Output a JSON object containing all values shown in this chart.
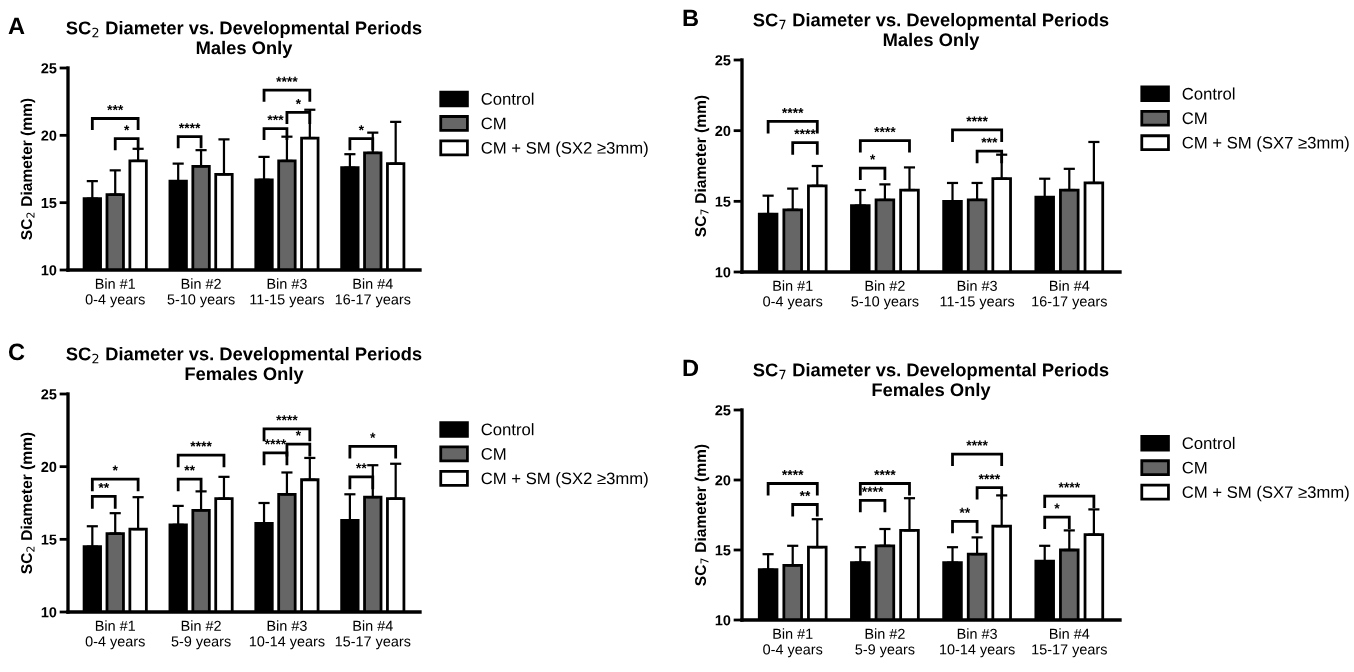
{
  "chart_data": [
    {
      "type": "bar",
      "title": "SC$_{2}$ Diameter vs. Developmental Periods",
      "subtitle": "Males Only",
      "ylabel": "SC$_{2}$ Diameter (mm)",
      "categories": [
        "Bin #1\n0-4 years",
        "Bin #2\n5-10 years",
        "Bin #3\n11-15 years",
        "Bin #4\n16-17 years"
      ],
      "ylim": [
        10,
        25
      ],
      "yticks": [
        10,
        15,
        20,
        25
      ],
      "legend": "right",
      "series": [
        {
          "name": "Control",
          "color": "#000000",
          "values": [
            15.3,
            16.6,
            16.7,
            17.6
          ],
          "errors": [
            [
              15.3,
              16.6
            ],
            [
              16.6,
              17.9
            ],
            [
              16.7,
              18.4
            ],
            [
              17.6,
              18.6
            ]
          ]
        },
        {
          "name": "CM",
          "color": "#666666",
          "values": [
            15.6,
            17.7,
            18.1,
            18.7
          ],
          "errors": [
            [
              15.6,
              17.4
            ],
            [
              17.7,
              18.9
            ],
            [
              18.1,
              19.9
            ],
            [
              18.7,
              20.2
            ]
          ]
        },
        {
          "name": "CM + SM (SX2 ≥3mm)",
          "color": "#ffffff",
          "values": [
            18.1,
            17.1,
            19.8,
            17.9
          ],
          "errors": [
            [
              18.1,
              19.0
            ],
            [
              17.1,
              19.7
            ],
            [
              19.8,
              21.9
            ],
            [
              17.9,
              21.0
            ]
          ]
        }
      ],
      "annotations": [
        "A",
        "***",
        "*",
        "****",
        "****",
        "***",
        "*",
        "*"
      ]
    },
    {
      "type": "bar",
      "title": "SC$_{7}$ Diameter vs. Developmental Periods",
      "subtitle": "Males Only",
      "ylabel": "SC$_{7}$ Diameter (mm)",
      "categories": [
        "Bin #1\n0-4 years",
        "Bin #2\n5-10 years",
        "Bin #3\n11-15 years",
        "Bin #4\n16-17 years"
      ],
      "ylim": [
        10,
        25
      ],
      "yticks": [
        10,
        15,
        20,
        25
      ],
      "legend": "right",
      "series": [
        {
          "name": "Control",
          "color": "#000000",
          "values": [
            14.1,
            14.7,
            15.0,
            15.3
          ],
          "errors": [
            [
              14.1,
              15.4
            ],
            [
              14.7,
              15.8
            ],
            [
              15.0,
              16.3
            ],
            [
              15.3,
              16.6
            ]
          ]
        },
        {
          "name": "CM",
          "color": "#666666",
          "values": [
            14.4,
            15.1,
            15.1,
            15.8
          ],
          "errors": [
            [
              14.4,
              15.9
            ],
            [
              15.1,
              16.2
            ],
            [
              15.1,
              16.3
            ],
            [
              15.8,
              17.3
            ]
          ]
        },
        {
          "name": "CM + SM (SX7 ≥3mm)",
          "color": "#ffffff",
          "values": [
            16.1,
            15.8,
            16.6,
            16.3
          ],
          "errors": [
            [
              16.1,
              17.5
            ],
            [
              15.8,
              17.4
            ],
            [
              16.6,
              18.3
            ],
            [
              16.3,
              19.2
            ]
          ]
        }
      ],
      "annotations": [
        "B",
        "****",
        "****",
        "****",
        "*",
        "****",
        "***"
      ]
    },
    {
      "type": "bar",
      "title": "SC$_{2}$ Diameter vs. Developmental Periods",
      "subtitle": "Females Only",
      "ylabel": "SC$_{2}$ Diameter (mm)",
      "categories": [
        "Bin #1\n0-4 years",
        "Bin #2\n5-9 years",
        "Bin #3\n10-14 years",
        "Bin #4\n15-17 years"
      ],
      "ylim": [
        10,
        25
      ],
      "yticks": [
        10,
        15,
        20,
        25
      ],
      "legend": "right",
      "series": [
        {
          "name": "Control",
          "color": "#000000",
          "values": [
            14.5,
            16.0,
            16.1,
            16.3
          ],
          "errors": [
            [
              14.5,
              15.9
            ],
            [
              16.0,
              17.3
            ],
            [
              16.1,
              17.5
            ],
            [
              16.3,
              18.1
            ]
          ]
        },
        {
          "name": "CM",
          "color": "#666666",
          "values": [
            15.4,
            17.0,
            18.1,
            17.9
          ],
          "errors": [
            [
              15.4,
              16.8
            ],
            [
              17.0,
              18.3
            ],
            [
              18.1,
              19.6
            ],
            [
              17.9,
              20.1
            ]
          ]
        },
        {
          "name": "CM + SM (SX2 ≥3mm)",
          "color": "#ffffff",
          "values": [
            15.7,
            17.8,
            19.1,
            17.8
          ],
          "errors": [
            [
              15.7,
              17.9
            ],
            [
              17.8,
              19.3
            ],
            [
              19.1,
              20.6
            ],
            [
              17.8,
              20.2
            ]
          ]
        }
      ],
      "annotations": [
        "C",
        "*",
        "**",
        "****",
        "**",
        "****",
        "****",
        "*",
        "*",
        "**"
      ]
    },
    {
      "type": "bar",
      "title": "SC$_{7}$ Diameter vs. Developmental Periods",
      "subtitle": "Females Only",
      "ylabel": "SC$_{7}$ Diameter (mm)",
      "categories": [
        "Bin #1\n0-4 years",
        "Bin #2\n5-9 years",
        "Bin #3\n10-14 years",
        "Bin #4\n15-17 years"
      ],
      "ylim": [
        10,
        25
      ],
      "yticks": [
        10,
        15,
        20,
        25
      ],
      "legend": "right",
      "series": [
        {
          "name": "Control",
          "color": "#000000",
          "values": [
            13.6,
            14.1,
            14.1,
            14.2
          ],
          "errors": [
            [
              13.6,
              14.7
            ],
            [
              14.1,
              15.2
            ],
            [
              14.1,
              15.2
            ],
            [
              14.2,
              15.3
            ]
          ]
        },
        {
          "name": "CM",
          "color": "#666666",
          "values": [
            13.9,
            15.3,
            14.7,
            15.0
          ],
          "errors": [
            [
              13.9,
              15.3
            ],
            [
              15.3,
              16.5
            ],
            [
              14.7,
              15.9
            ],
            [
              15.0,
              16.4
            ]
          ]
        },
        {
          "name": "CM + SM (SX7 ≥3mm)",
          "color": "#ffffff",
          "values": [
            15.2,
            16.4,
            16.7,
            16.1
          ],
          "errors": [
            [
              15.2,
              17.2
            ],
            [
              16.4,
              18.7
            ],
            [
              16.7,
              18.9
            ],
            [
              16.1,
              17.9
            ]
          ]
        }
      ],
      "annotations": [
        "D",
        "****",
        "**",
        "****",
        "****",
        "****",
        "**",
        "****",
        "****",
        "*"
      ]
    }
  ]
}
